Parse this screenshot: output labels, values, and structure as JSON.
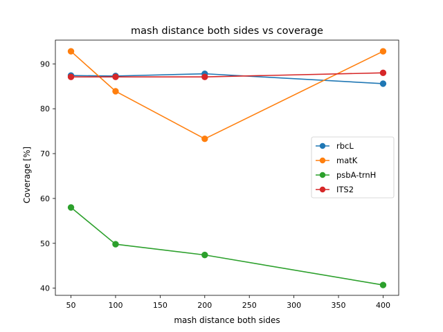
{
  "chart_data": {
    "type": "line",
    "title": "mash distance both sides vs coverage",
    "xlabel": "mash distance both sides",
    "ylabel": "Coverage [%]",
    "x": [
      50,
      100,
      200,
      400
    ],
    "xlim": [
      32.5,
      417.5
    ],
    "ylim": [
      38.4,
      95.3
    ],
    "xticks": [
      50,
      100,
      150,
      200,
      250,
      300,
      350,
      400
    ],
    "yticks": [
      40,
      50,
      60,
      70,
      80,
      90
    ],
    "grid": false,
    "legend_position": "center-right",
    "series": [
      {
        "name": "rbcL",
        "color": "#1f77b4",
        "values": [
          87.4,
          87.3,
          87.8,
          85.6
        ]
      },
      {
        "name": "matK",
        "color": "#ff7f0e",
        "values": [
          92.8,
          83.9,
          73.3,
          92.8
        ]
      },
      {
        "name": "psbA-trnH",
        "color": "#2ca02c",
        "values": [
          58.0,
          49.8,
          47.4,
          40.7
        ]
      },
      {
        "name": "ITS2",
        "color": "#d62728",
        "values": [
          87.1,
          87.1,
          87.1,
          88.0
        ]
      }
    ]
  }
}
